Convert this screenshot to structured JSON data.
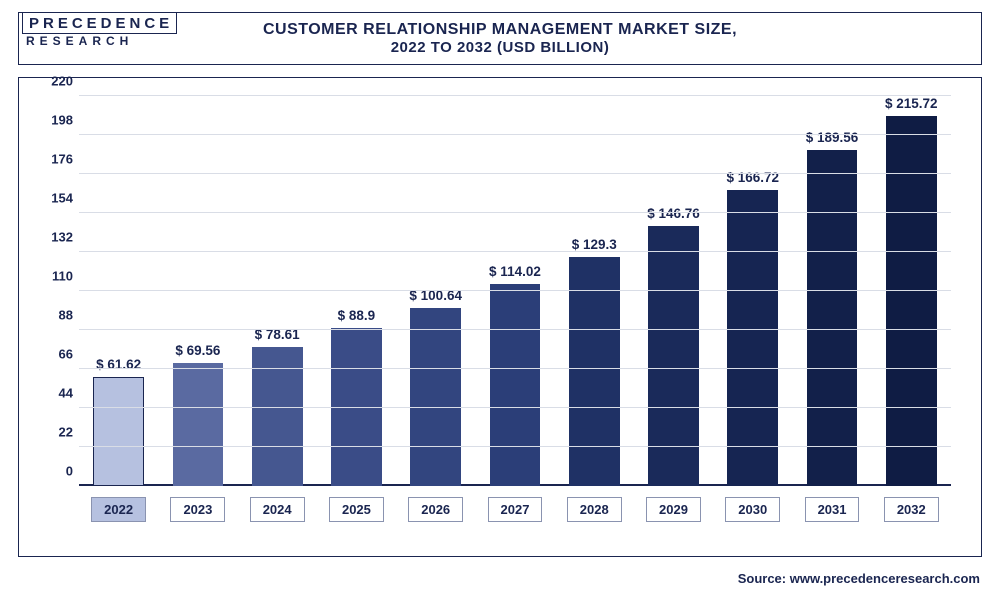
{
  "logo": {
    "top": "PRECEDENCE",
    "bottom": "RESEARCH"
  },
  "title": {
    "line1": "CUSTOMER RELATIONSHIP MANAGEMENT MARKET SIZE,",
    "line2": "2022 TO 2032 (USD BILLION)"
  },
  "chart": {
    "type": "bar",
    "ylim": [
      0,
      220
    ],
    "ytick_step": 22,
    "yticks": [
      0,
      22,
      44,
      66,
      88,
      110,
      132,
      154,
      176,
      198,
      220
    ],
    "grid_color": "#d9dde6",
    "axis_color": "#1a2550",
    "background_color": "#ffffff",
    "label_fontsize": 13.5,
    "tick_fontsize": 13,
    "value_prefix": "$ ",
    "bar_width": 0.64,
    "categories": [
      "2022",
      "2023",
      "2024",
      "2025",
      "2026",
      "2027",
      "2028",
      "2029",
      "2030",
      "2031",
      "2032"
    ],
    "values": [
      61.62,
      69.56,
      78.61,
      88.9,
      100.64,
      114.02,
      129.3,
      146.76,
      166.72,
      189.56,
      215.72
    ],
    "value_labels": [
      "$ 61.62",
      "$ 69.56",
      "$ 78.61",
      "$ 88.9",
      "$ 100.64",
      "$ 114.02",
      "$ 129.3",
      "$ 146.76",
      "$ 166.72",
      "$ 189.56",
      "$ 215.72"
    ],
    "bar_colors": [
      "#b6c1e0",
      "#5a6aa1",
      "#455790",
      "#3a4c87",
      "#32457f",
      "#2b3e78",
      "#1f3165",
      "#1a2a5a",
      "#162552",
      "#12204a",
      "#0f1c44"
    ],
    "highlight_index": 0,
    "highlight_border": "#1a2550"
  },
  "source": "Source: www.precedenceresearch.com"
}
